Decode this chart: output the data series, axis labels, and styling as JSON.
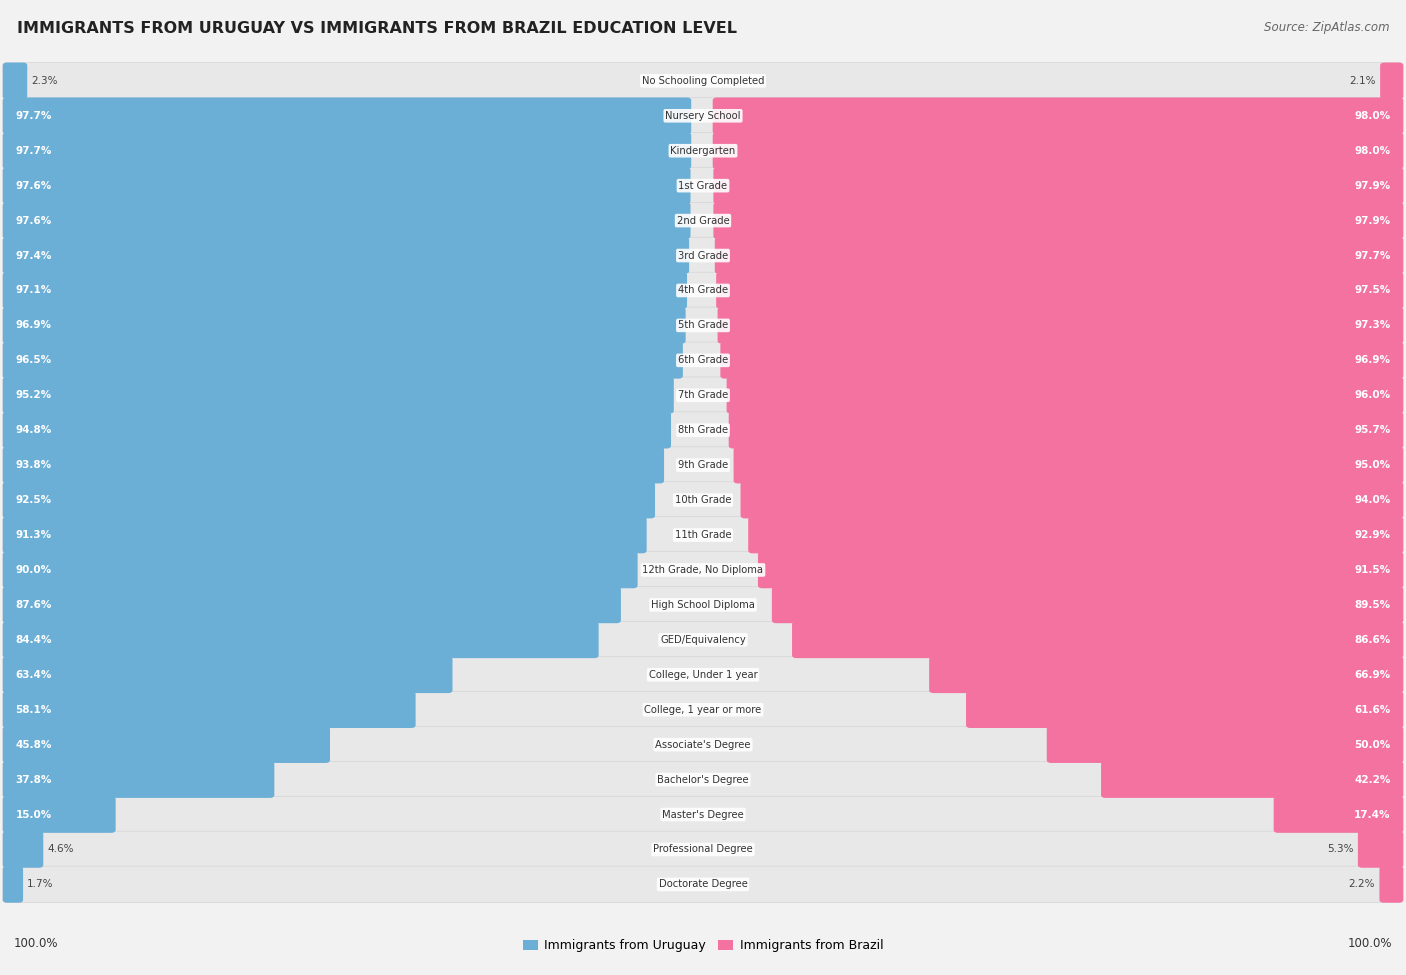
{
  "title": "IMMIGRANTS FROM URUGUAY VS IMMIGRANTS FROM BRAZIL EDUCATION LEVEL",
  "source": "Source: ZipAtlas.com",
  "categories": [
    "No Schooling Completed",
    "Nursery School",
    "Kindergarten",
    "1st Grade",
    "2nd Grade",
    "3rd Grade",
    "4th Grade",
    "5th Grade",
    "6th Grade",
    "7th Grade",
    "8th Grade",
    "9th Grade",
    "10th Grade",
    "11th Grade",
    "12th Grade, No Diploma",
    "High School Diploma",
    "GED/Equivalency",
    "College, Under 1 year",
    "College, 1 year or more",
    "Associate's Degree",
    "Bachelor's Degree",
    "Master's Degree",
    "Professional Degree",
    "Doctorate Degree"
  ],
  "uruguay_values": [
    2.3,
    97.7,
    97.7,
    97.6,
    97.6,
    97.4,
    97.1,
    96.9,
    96.5,
    95.2,
    94.8,
    93.8,
    92.5,
    91.3,
    90.0,
    87.6,
    84.4,
    63.4,
    58.1,
    45.8,
    37.8,
    15.0,
    4.6,
    1.7
  ],
  "brazil_values": [
    2.1,
    98.0,
    98.0,
    97.9,
    97.9,
    97.7,
    97.5,
    97.3,
    96.9,
    96.0,
    95.7,
    95.0,
    94.0,
    92.9,
    91.5,
    89.5,
    86.6,
    66.9,
    61.6,
    50.0,
    42.2,
    17.4,
    5.3,
    2.2
  ],
  "uruguay_color": "#6BAED6",
  "brazil_color": "#F472A0",
  "bg_color": "#f2f2f2",
  "bar_bg_color": "#e8e8e8",
  "legend_uruguay": "Immigrants from Uruguay",
  "legend_brazil": "Immigrants from Brazil"
}
